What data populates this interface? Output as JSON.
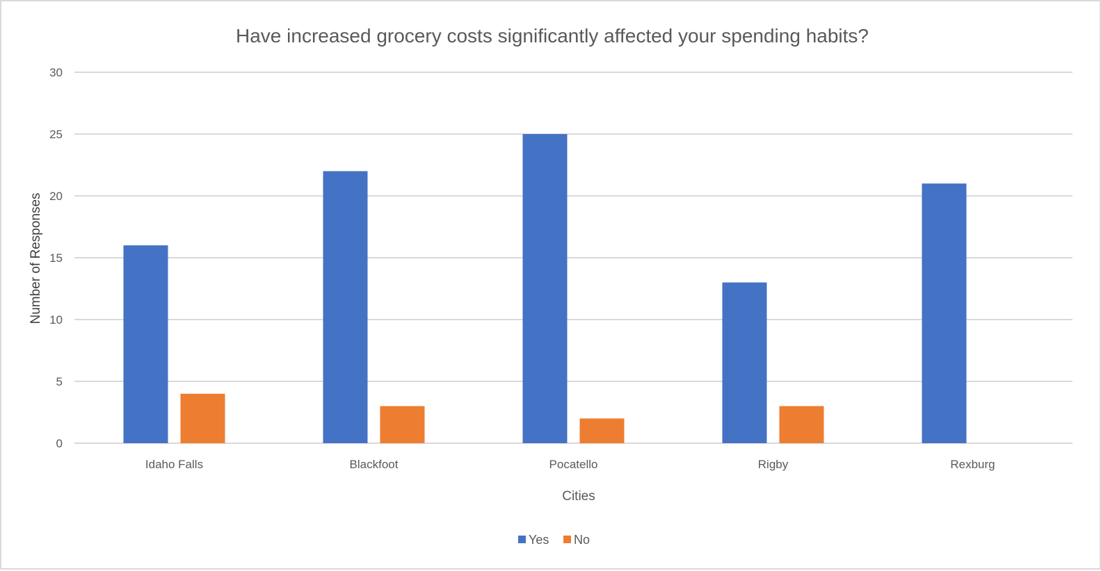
{
  "chart_data": {
    "type": "bar",
    "title": "Have increased grocery costs significantly affected your spending habits?",
    "xlabel": "Cities",
    "ylabel": "Number of Responses",
    "categories": [
      "Idaho Falls",
      "Blackfoot",
      "Pocatello",
      "Rigby",
      "Rexburg"
    ],
    "series": [
      {
        "name": "Yes",
        "values": [
          16,
          22,
          25,
          13,
          21
        ],
        "color": "#4472C4"
      },
      {
        "name": "No",
        "values": [
          4,
          3,
          2,
          3,
          0
        ],
        "color": "#ED7D31"
      }
    ],
    "ylim": [
      0,
      30
    ],
    "yticks": [
      0,
      5,
      10,
      15,
      20,
      25,
      30
    ],
    "grid": true,
    "legend": "bottom"
  }
}
